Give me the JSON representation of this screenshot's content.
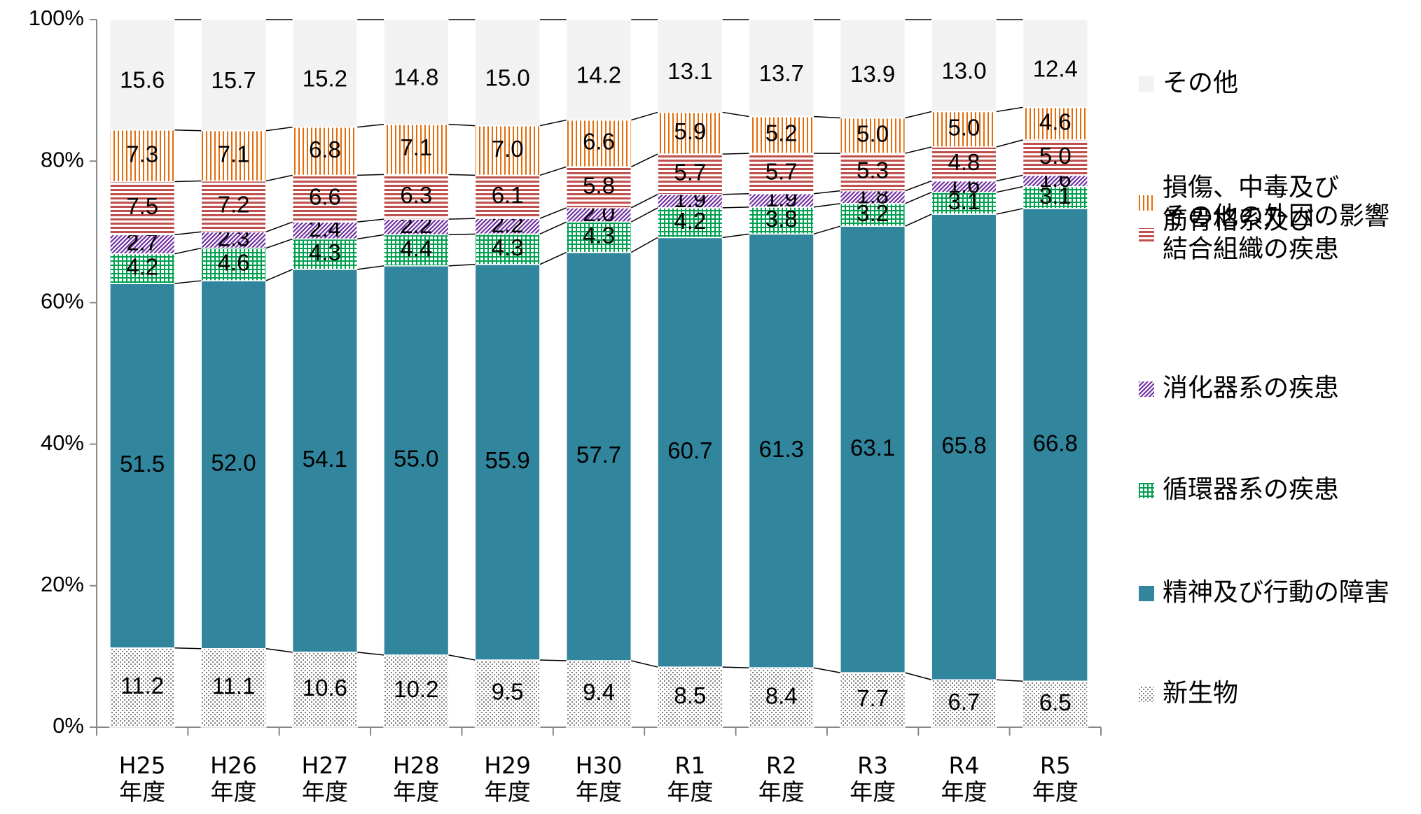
{
  "chart_data": {
    "type": "stacked_bar_100",
    "categories": [
      "H25\n年度",
      "H26\n年度",
      "H27\n年度",
      "H28\n年度",
      "H29\n年度",
      "H30\n年度",
      "R1\n年度",
      "R2\n年度",
      "R3\n年度",
      "R4\n年度",
      "R5\n年度"
    ],
    "ylim": [
      0,
      100
    ],
    "yticks": [
      {
        "value": 0,
        "label": "0%"
      },
      {
        "value": 20,
        "label": "20%"
      },
      {
        "value": 40,
        "label": "40%"
      },
      {
        "value": 60,
        "label": "60%"
      },
      {
        "value": 80,
        "label": "80%"
      },
      {
        "value": 100,
        "label": "100%"
      }
    ],
    "series": [
      {
        "name": "新生物",
        "color": "#7f7f7f",
        "values": [
          11.2,
          11.1,
          10.6,
          10.2,
          9.5,
          9.4,
          8.5,
          8.4,
          7.7,
          6.7,
          6.5
        ],
        "value_labels": [
          "11.2",
          "11.1",
          "10.6",
          "10.2",
          "9.5",
          "9.4",
          "8.5",
          "8.4",
          "7.7",
          "6.7",
          "6.5"
        ]
      },
      {
        "name": "精神及び行動の障害",
        "color": "#31859c",
        "values": [
          51.5,
          52.0,
          54.1,
          55.0,
          55.9,
          57.7,
          60.7,
          61.3,
          63.1,
          65.8,
          66.8
        ],
        "value_labels": [
          "51.5",
          "52.0",
          "54.1",
          "55.0",
          "55.9",
          "57.7",
          "60.7",
          "61.3",
          "63.1",
          "65.8",
          "66.8"
        ]
      },
      {
        "name": "循環器系の疾患",
        "color": "#00a050",
        "values": [
          4.2,
          4.6,
          4.3,
          4.4,
          4.3,
          4.3,
          4.2,
          3.8,
          3.2,
          3.1,
          3.1
        ],
        "value_labels": [
          "4.2",
          "4.6",
          "4.3",
          "4.4",
          "4.3",
          "4.3",
          "4.2",
          "3.8",
          "3.2",
          "3.1",
          "3.1"
        ]
      },
      {
        "name": "消化器系の疾患",
        "color": "#7030a0",
        "values": [
          2.7,
          2.3,
          2.4,
          2.2,
          2.2,
          2.0,
          1.9,
          1.9,
          1.8,
          1.6,
          1.6
        ],
        "value_labels": [
          "2.7",
          "2.3",
          "2.4",
          "2.2",
          "2.2",
          "2.0",
          "1.9",
          "1.9",
          "1.8",
          "1.6",
          "1.6"
        ]
      },
      {
        "name": "筋骨格系及び\n結合組織の疾患",
        "color": "#c0504d",
        "values": [
          7.5,
          7.2,
          6.6,
          6.3,
          6.1,
          5.8,
          5.7,
          5.7,
          5.3,
          4.8,
          5.0
        ],
        "value_labels": [
          "7.5",
          "7.2",
          "6.6",
          "6.3",
          "6.1",
          "5.8",
          "5.7",
          "5.7",
          "5.3",
          "4.8",
          "5.0"
        ]
      },
      {
        "name": "損傷、中毒及び\nその他の外因の影響",
        "color": "#e46c0a",
        "values": [
          7.3,
          7.1,
          6.8,
          7.1,
          7.0,
          6.6,
          5.9,
          5.2,
          5.0,
          5.0,
          4.6
        ],
        "value_labels": [
          "7.3",
          "7.1",
          "6.8",
          "7.1",
          "7.0",
          "6.6",
          "5.9",
          "5.2",
          "5.0",
          "5.0",
          "4.6"
        ]
      },
      {
        "name": "その他",
        "color": "#f2f2f2",
        "values": [
          15.6,
          15.7,
          15.2,
          14.8,
          15.0,
          14.2,
          13.1,
          13.7,
          13.9,
          13.0,
          12.4
        ],
        "value_labels": [
          "15.6",
          "15.7",
          "15.2",
          "14.8",
          "15.0",
          "14.2",
          "13.1",
          "13.7",
          "13.9",
          "13.0",
          "12.4"
        ]
      }
    ]
  }
}
